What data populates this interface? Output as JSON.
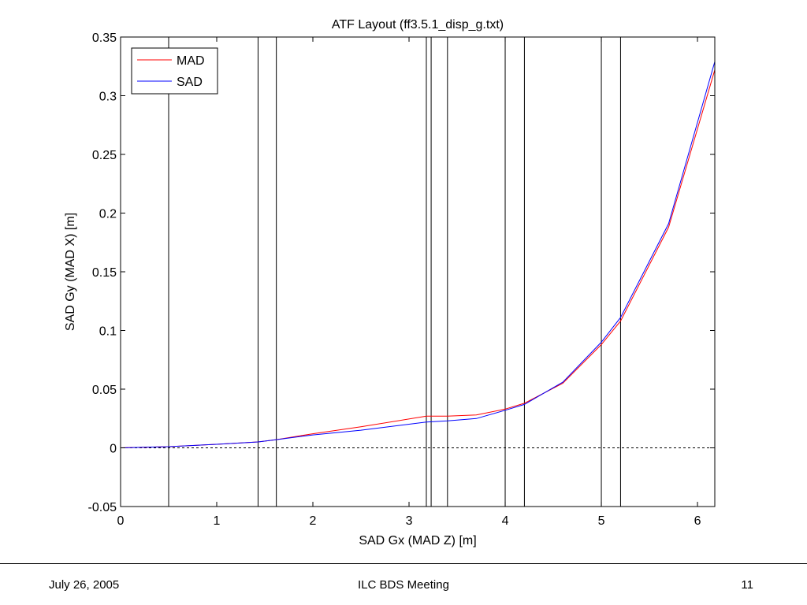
{
  "chart_data": {
    "type": "line",
    "title": "ATF Layout (ff3.5.1_disp_g.txt)",
    "xlabel": "SAD Gx (MAD Z) [m]",
    "ylabel": "SAD Gy (MAD X) [m]",
    "xlim": [
      0,
      6.18
    ],
    "ylim": [
      -0.05,
      0.35
    ],
    "xticks": [
      0,
      1,
      2,
      3,
      4,
      5,
      6
    ],
    "yticks": [
      -0.05,
      0,
      0.05,
      0.1,
      0.15,
      0.2,
      0.25,
      0.3,
      0.35
    ],
    "xtick_labels": [
      "0",
      "1",
      "2",
      "3",
      "4",
      "5",
      "6"
    ],
    "ytick_labels": [
      "-0.05",
      "0",
      "0.05",
      "0.1",
      "0.15",
      "0.2",
      "0.25",
      "0.3",
      "0.35"
    ],
    "grid": false,
    "legend_position": "top-left",
    "zero_line": {
      "y": 0,
      "style": "dashed"
    },
    "vertical_lines": [
      0.5,
      1.43,
      1.62,
      3.18,
      3.23,
      3.4,
      4.0,
      4.2,
      5.0,
      5.2
    ],
    "series": [
      {
        "name": "MAD",
        "color": "#ff0000",
        "x": [
          0,
          0.5,
          1.0,
          1.43,
          1.62,
          2.0,
          2.5,
          3.18,
          3.4,
          3.7,
          4.0,
          4.2,
          4.6,
          5.0,
          5.2,
          5.7,
          6.18
        ],
        "y": [
          0,
          0.001,
          0.003,
          0.005,
          0.007,
          0.012,
          0.018,
          0.027,
          0.027,
          0.028,
          0.033,
          0.038,
          0.055,
          0.088,
          0.108,
          0.188,
          0.322
        ]
      },
      {
        "name": "SAD",
        "color": "#0000ff",
        "x": [
          0,
          0.5,
          1.0,
          1.43,
          1.62,
          2.0,
          2.5,
          3.18,
          3.4,
          3.7,
          4.0,
          4.2,
          4.6,
          5.0,
          5.2,
          5.7,
          6.18
        ],
        "y": [
          0,
          0.001,
          0.003,
          0.005,
          0.007,
          0.011,
          0.015,
          0.022,
          0.023,
          0.025,
          0.032,
          0.037,
          0.056,
          0.09,
          0.111,
          0.191,
          0.329
        ]
      }
    ]
  },
  "footer": {
    "date": "July 26, 2005",
    "center": "ILC BDS Meeting",
    "page": "11"
  }
}
